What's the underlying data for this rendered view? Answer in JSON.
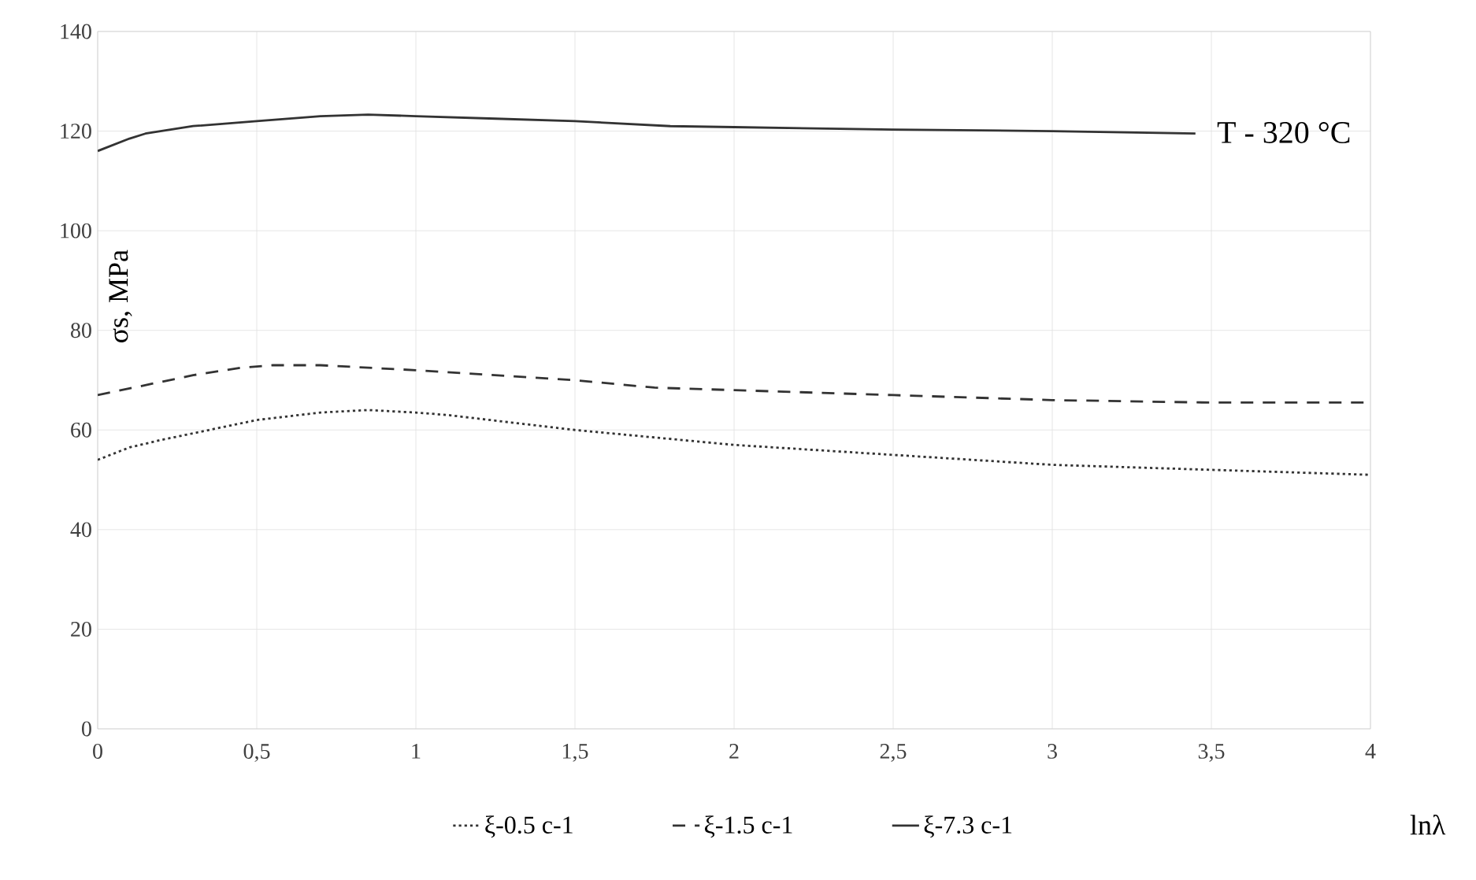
{
  "chart_data": {
    "type": "line",
    "xlabel": "lnλ",
    "ylabel": "σs, MPa",
    "annotations": [
      "T - 320 °C"
    ],
    "xlim": [
      0,
      4
    ],
    "ylim": [
      0,
      140
    ],
    "xticks": [
      0,
      {
        "value": 0.5,
        "label": "0,5"
      },
      1,
      {
        "value": 1.5,
        "label": "1,5"
      },
      2,
      {
        "value": 2.5,
        "label": "2,5"
      },
      3,
      {
        "value": 3.5,
        "label": "3,5"
      },
      4
    ],
    "yticks": [
      0,
      20,
      40,
      60,
      80,
      100,
      120,
      140
    ],
    "grid": true,
    "legend": "bottom",
    "series": [
      {
        "name": "ξ-0.5 c-1",
        "color": "#333333",
        "line_style": "dotted",
        "x": [
          0,
          0.1,
          0.2,
          0.35,
          0.5,
          0.7,
          0.85,
          1.0,
          1.1,
          1.3,
          1.5,
          1.75,
          2.0,
          2.25,
          2.5,
          2.75,
          3.0,
          3.25,
          3.5,
          3.75,
          4.0
        ],
        "values": [
          54,
          56.5,
          58,
          60,
          62,
          63.5,
          64,
          63.5,
          63,
          61.5,
          60,
          58.5,
          57,
          56,
          55,
          54,
          53,
          52.5,
          52,
          51.5,
          51
        ]
      },
      {
        "name": "ξ-1.5 c-1",
        "color": "#333333",
        "line_style": "dashed",
        "x": [
          0,
          0.15,
          0.3,
          0.45,
          0.55,
          0.7,
          0.85,
          1.0,
          1.25,
          1.5,
          1.75,
          2.0,
          2.5,
          3.0,
          3.5,
          4.0
        ],
        "values": [
          67,
          69,
          71,
          72.5,
          73,
          73,
          72.5,
          72,
          71,
          70,
          68.5,
          68,
          67,
          66,
          65.5,
          65.5
        ]
      },
      {
        "name": "ξ-7.3 c-1",
        "color": "#333333",
        "line_style": "solid",
        "x": [
          0,
          0.1,
          0.15,
          0.3,
          0.5,
          0.7,
          0.85,
          1.0,
          1.25,
          1.5,
          1.8,
          2.0,
          2.5,
          3.0,
          3.45
        ],
        "values": [
          116,
          118.5,
          119.5,
          121,
          122,
          123,
          123.3,
          123,
          122.5,
          122,
          121,
          120.8,
          120.3,
          120,
          119.5
        ]
      }
    ]
  }
}
